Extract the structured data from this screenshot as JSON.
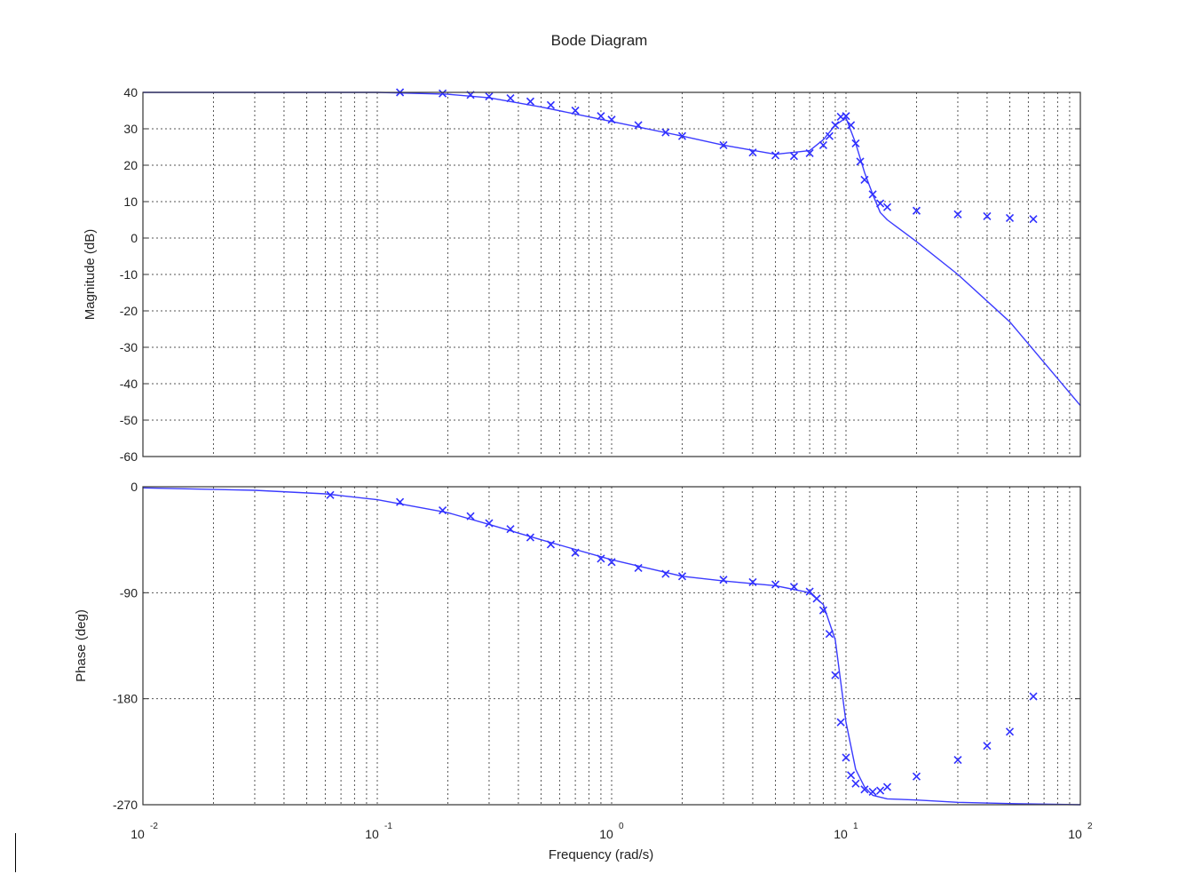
{
  "chart_data": [
    {
      "type": "line",
      "panel": "magnitude",
      "title": "Bode Diagram",
      "ylabel": "Magnitude (dB)",
      "xscale": "log",
      "xlim": [
        0.01,
        100
      ],
      "ylim": [
        -60,
        40
      ],
      "yticks": [
        40,
        30,
        20,
        10,
        0,
        -10,
        -20,
        -30,
        -40,
        -50,
        -60
      ],
      "ytick_labels": [
        "40",
        "30",
        "20",
        "10",
        "0",
        "-10",
        "-20",
        "-30",
        "-40",
        "-50",
        "-60"
      ],
      "grid": true,
      "series": [
        {
          "style": "line",
          "color": "#3b3bff",
          "x": [
            0.01,
            0.05,
            0.1,
            0.2,
            0.3,
            0.5,
            1,
            2,
            3,
            5,
            7,
            8,
            9,
            10,
            11,
            12,
            13,
            14,
            15,
            20,
            30,
            50,
            100
          ],
          "y": [
            40,
            40,
            40,
            39.5,
            38.5,
            36,
            32,
            28,
            25.5,
            23,
            24,
            27,
            31,
            33,
            26,
            18,
            12,
            7,
            5,
            -1,
            -10,
            -23,
            -46
          ]
        },
        {
          "style": "markers",
          "marker": "x",
          "color": "#3030ff",
          "x": [
            0.125,
            0.19,
            0.25,
            0.3,
            0.37,
            0.45,
            0.55,
            0.7,
            0.9,
            1,
            1.3,
            1.7,
            2,
            3,
            4,
            5,
            6,
            7,
            8,
            8.5,
            9,
            9.5,
            10,
            10.5,
            11,
            11.5,
            12,
            13,
            14,
            15,
            20,
            30,
            40,
            50,
            63
          ],
          "y": [
            40,
            39.7,
            39.3,
            38.9,
            38.4,
            37.5,
            36.5,
            35,
            33.5,
            32.5,
            31,
            29,
            28,
            25.5,
            23.5,
            22.7,
            22.5,
            23.3,
            25.5,
            28,
            31,
            33.3,
            33.5,
            31,
            26,
            21,
            16,
            12,
            9.5,
            8.5,
            7.5,
            6.5,
            6,
            5.5,
            5.2
          ]
        }
      ]
    },
    {
      "type": "line",
      "panel": "phase",
      "xlabel": "Frequency  (rad/s)",
      "ylabel": "Phase (deg)",
      "xscale": "log",
      "xlim": [
        0.01,
        100
      ],
      "ylim": [
        -270,
        0
      ],
      "yticks": [
        0,
        -90,
        -180,
        -270
      ],
      "ytick_labels": [
        "0",
        "-90",
        "-180",
        "-270"
      ],
      "xtick_base": "10",
      "xtick_exponents": [
        "-2",
        "-1",
        "0",
        "1",
        "2"
      ],
      "xticks": [
        0.01,
        0.1,
        1,
        10,
        100
      ],
      "grid": true,
      "series": [
        {
          "style": "line",
          "color": "#3b3bff",
          "x": [
            0.01,
            0.03,
            0.06,
            0.1,
            0.2,
            0.3,
            0.5,
            1,
            2,
            3,
            5,
            7,
            8,
            9,
            10,
            11,
            12,
            13,
            15,
            20,
            30,
            50,
            100
          ],
          "y": [
            -1,
            -3,
            -6,
            -11,
            -22,
            -32,
            -45,
            -62,
            -76,
            -80,
            -84,
            -90,
            -100,
            -130,
            -200,
            -240,
            -255,
            -262,
            -265,
            -266,
            -268,
            -269,
            -270
          ]
        },
        {
          "style": "markers",
          "marker": "x",
          "color": "#3030ff",
          "x": [
            0.063,
            0.125,
            0.19,
            0.25,
            0.3,
            0.37,
            0.45,
            0.55,
            0.7,
            0.9,
            1,
            1.3,
            1.7,
            2,
            3,
            4,
            5,
            6,
            7,
            7.5,
            8,
            8.5,
            9,
            9.5,
            10,
            10.5,
            11,
            12,
            13,
            14,
            15,
            20,
            30,
            40,
            50,
            63
          ],
          "y": [
            -7,
            -13,
            -20,
            -25,
            -31,
            -36,
            -43,
            -49,
            -56,
            -61,
            -64,
            -69,
            -74,
            -76,
            -79,
            -81,
            -83,
            -85,
            -89,
            -95,
            -105,
            -125,
            -160,
            -200,
            -230,
            -245,
            -252,
            -257,
            -259,
            -258,
            -255,
            -246,
            -232,
            -220,
            -208,
            -178
          ]
        }
      ]
    }
  ]
}
